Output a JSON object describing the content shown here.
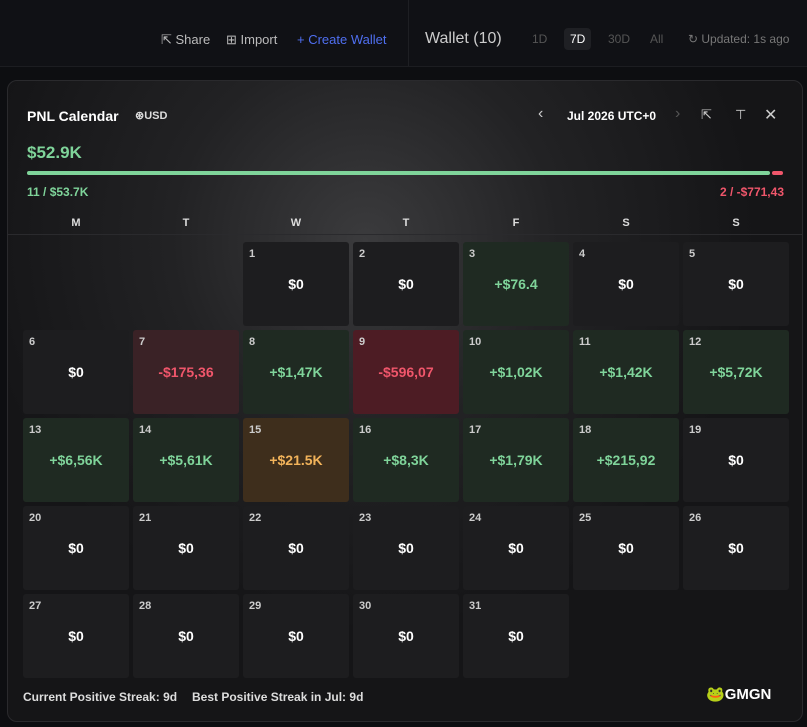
{
  "topbar": {
    "share": "Share",
    "import": "Import",
    "create_wallet": "Create Wallet",
    "wallet_title": "Wallet (10)",
    "ranges": [
      "1D",
      "7D",
      "30D",
      "All"
    ],
    "active_range": 1,
    "updated": "Updated: 1s ago"
  },
  "calendar": {
    "title": "PNL Calendar",
    "currency": "USD",
    "month": "Jul 2026 UTC+0",
    "total": "$52.9K",
    "positive_summary": "11 / $53.7K",
    "negative_summary": "2 / -$771,43",
    "weekdays": [
      "M",
      "T",
      "W",
      "T",
      "F",
      "S",
      "S"
    ],
    "days": [
      null,
      null,
      {
        "day": "1",
        "pnl": "$0",
        "color": "#ffffff",
        "bg": "#1d1d1f"
      },
      {
        "day": "2",
        "pnl": "$0",
        "color": "#ffffff",
        "bg": "#1d1d1f"
      },
      {
        "day": "3",
        "pnl": "+$76.4",
        "color": "#7fd49a",
        "bg": "#1f2a22"
      },
      {
        "day": "4",
        "pnl": "$0",
        "color": "#ffffff",
        "bg": "#1d1d1f"
      },
      {
        "day": "5",
        "pnl": "$0",
        "color": "#ffffff",
        "bg": "#1d1d1f"
      },
      {
        "day": "6",
        "pnl": "$0",
        "color": "#ffffff",
        "bg": "#1d1d1f"
      },
      {
        "day": "7",
        "pnl": "-$175,36",
        "color": "#f0566b",
        "bg": "#3a2226"
      },
      {
        "day": "8",
        "pnl": "+$1,47K",
        "color": "#7fd49a",
        "bg": "#1f2a22"
      },
      {
        "day": "9",
        "pnl": "-$596,07",
        "color": "#f0566b",
        "bg": "#4d1c24"
      },
      {
        "day": "10",
        "pnl": "+$1,02K",
        "color": "#7fd49a",
        "bg": "#1f2a22"
      },
      {
        "day": "11",
        "pnl": "+$1,42K",
        "color": "#7fd49a",
        "bg": "#1f2a22"
      },
      {
        "day": "12",
        "pnl": "+$5,72K",
        "color": "#7fd49a",
        "bg": "#1f2a22"
      },
      {
        "day": "13",
        "pnl": "+$6,56K",
        "color": "#7fd49a",
        "bg": "#1f2a22"
      },
      {
        "day": "14",
        "pnl": "+$5,61K",
        "color": "#7fd49a",
        "bg": "#1f2a22"
      },
      {
        "day": "15",
        "pnl": "+$21.5K",
        "color": "#f2b35a",
        "bg": "#3e2e1c"
      },
      {
        "day": "16",
        "pnl": "+$8,3K",
        "color": "#7fd49a",
        "bg": "#1f2a22"
      },
      {
        "day": "17",
        "pnl": "+$1,79K",
        "color": "#7fd49a",
        "bg": "#1f2a22"
      },
      {
        "day": "18",
        "pnl": "+$215,92",
        "color": "#7fd49a",
        "bg": "#1f2a22"
      },
      {
        "day": "19",
        "pnl": "$0",
        "color": "#ffffff",
        "bg": "#1d1d1f"
      },
      {
        "day": "20",
        "pnl": "$0",
        "color": "#ffffff",
        "bg": "#1d1d1f"
      },
      {
        "day": "21",
        "pnl": "$0",
        "color": "#ffffff",
        "bg": "#1d1d1f"
      },
      {
        "day": "22",
        "pnl": "$0",
        "color": "#ffffff",
        "bg": "#1d1d1f"
      },
      {
        "day": "23",
        "pnl": "$0",
        "color": "#ffffff",
        "bg": "#1d1d1f"
      },
      {
        "day": "24",
        "pnl": "$0",
        "color": "#ffffff",
        "bg": "#1d1d1f"
      },
      {
        "day": "25",
        "pnl": "$0",
        "color": "#ffffff",
        "bg": "#1d1d1f"
      },
      {
        "day": "26",
        "pnl": "$0",
        "color": "#ffffff",
        "bg": "#1d1d1f"
      },
      {
        "day": "27",
        "pnl": "$0",
        "color": "#ffffff",
        "bg": "#1d1d1f"
      },
      {
        "day": "28",
        "pnl": "$0",
        "color": "#ffffff",
        "bg": "#1d1d1f"
      },
      {
        "day": "29",
        "pnl": "$0",
        "color": "#ffffff",
        "bg": "#1d1d1f"
      },
      {
        "day": "30",
        "pnl": "$0",
        "color": "#ffffff",
        "bg": "#1d1d1f"
      },
      {
        "day": "31",
        "pnl": "$0",
        "color": "#ffffff",
        "bg": "#1d1d1f"
      }
    ],
    "footer": {
      "current_label": "Current Positive Streak:",
      "current": "9d",
      "best_label": "Best Positive Streak in Jul:",
      "best": "9d"
    },
    "brand": "GMGN"
  }
}
